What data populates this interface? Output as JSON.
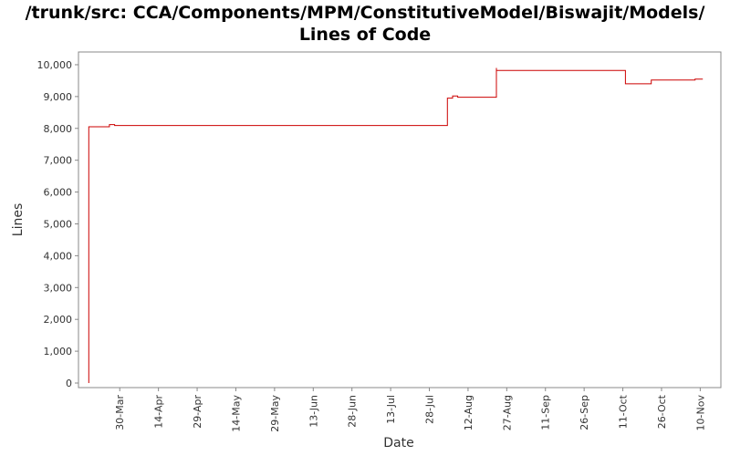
{
  "chart_data": {
    "type": "line",
    "title_lines": [
      "/trunk/src: CCA/Components/MPM/ConstitutiveModel/Biswajit/Models/",
      "Lines of Code"
    ],
    "xlabel": "Date",
    "ylabel": "Lines",
    "ylim": [
      0,
      10400
    ],
    "xlim": [
      "2006-03-14",
      "2006-11-18"
    ],
    "y_ticks": [
      {
        "value": 0,
        "label": "0"
      },
      {
        "value": 1000,
        "label": "1,000"
      },
      {
        "value": 2000,
        "label": "2,000"
      },
      {
        "value": 3000,
        "label": "3,000"
      },
      {
        "value": 4000,
        "label": "4,000"
      },
      {
        "value": 5000,
        "label": "5,000"
      },
      {
        "value": 6000,
        "label": "6,000"
      },
      {
        "value": 7000,
        "label": "7,000"
      },
      {
        "value": 8000,
        "label": "8,000"
      },
      {
        "value": 9000,
        "label": "9,000"
      },
      {
        "value": 10000,
        "label": "10,000"
      }
    ],
    "x_ticks": [
      {
        "date": "2006-03-30",
        "label": "30-Mar"
      },
      {
        "date": "2006-04-14",
        "label": "14-Apr"
      },
      {
        "date": "2006-04-29",
        "label": "29-Apr"
      },
      {
        "date": "2006-05-14",
        "label": "14-May"
      },
      {
        "date": "2006-05-29",
        "label": "29-May"
      },
      {
        "date": "2006-06-13",
        "label": "13-Jun"
      },
      {
        "date": "2006-06-28",
        "label": "28-Jun"
      },
      {
        "date": "2006-07-13",
        "label": "13-Jul"
      },
      {
        "date": "2006-07-28",
        "label": "28-Jul"
      },
      {
        "date": "2006-08-12",
        "label": "12-Aug"
      },
      {
        "date": "2006-08-27",
        "label": "27-Aug"
      },
      {
        "date": "2006-09-11",
        "label": "11-Sep"
      },
      {
        "date": "2006-09-26",
        "label": "26-Sep"
      },
      {
        "date": "2006-10-11",
        "label": "11-Oct"
      },
      {
        "date": "2006-10-26",
        "label": "26-Oct"
      },
      {
        "date": "2006-11-10",
        "label": "10-Nov"
      }
    ],
    "series": [
      {
        "color": "#cc0000",
        "step": true,
        "points": [
          {
            "date": "2006-03-18",
            "y": 0
          },
          {
            "date": "2006-03-18",
            "y": 8050
          },
          {
            "date": "2006-03-26",
            "y": 8050
          },
          {
            "date": "2006-03-26",
            "y": 8120
          },
          {
            "date": "2006-03-28",
            "y": 8120
          },
          {
            "date": "2006-03-28",
            "y": 8090
          },
          {
            "date": "2006-08-04",
            "y": 8090
          },
          {
            "date": "2006-08-04",
            "y": 8950
          },
          {
            "date": "2006-08-06",
            "y": 8950
          },
          {
            "date": "2006-08-06",
            "y": 9020
          },
          {
            "date": "2006-08-08",
            "y": 9020
          },
          {
            "date": "2006-08-08",
            "y": 8980
          },
          {
            "date": "2006-08-23",
            "y": 8980
          },
          {
            "date": "2006-08-23",
            "y": 9900
          },
          {
            "date": "2006-08-23",
            "y": 9820
          },
          {
            "date": "2006-10-12",
            "y": 9820
          },
          {
            "date": "2006-10-12",
            "y": 9400
          },
          {
            "date": "2006-10-22",
            "y": 9400
          },
          {
            "date": "2006-10-22",
            "y": 9520
          },
          {
            "date": "2006-11-08",
            "y": 9520
          },
          {
            "date": "2006-11-08",
            "y": 9550
          },
          {
            "date": "2006-11-11",
            "y": 9550
          }
        ]
      }
    ],
    "grid": false,
    "legend": "none"
  }
}
